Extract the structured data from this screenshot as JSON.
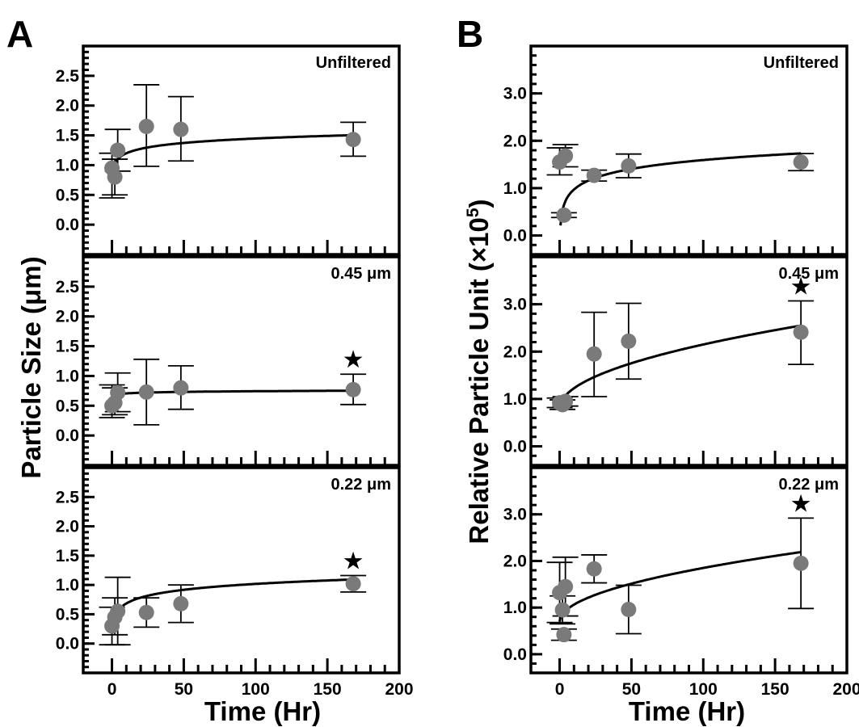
{
  "figure": {
    "panel_letters": [
      "A",
      "B"
    ],
    "x_axis_title": "Time (Hr)",
    "y_axis_titles": {
      "A": "Particle Size (μm)",
      "B_main": "Relative Particle Unit (×10",
      "B_sup": "5",
      "B_close": ")"
    }
  },
  "chart_data": [
    {
      "type": "scatter",
      "column": "A",
      "panel": "Unfiltered",
      "xlabel": "Time (Hr)",
      "ylabel": "Particle Size (μm)",
      "xlim": [
        -20,
        200
      ],
      "ylim": [
        -0.5,
        3.0
      ],
      "x_ticks": [
        "0",
        "50",
        "100",
        "150",
        "200"
      ],
      "y_ticks": [
        "0.0",
        "0.5",
        "1.0",
        "1.5",
        "2.0",
        "2.5"
      ],
      "points": [
        {
          "x": 0,
          "y": 0.95,
          "lo": 0.45,
          "hi": 1.2
        },
        {
          "x": 2,
          "y": 0.8,
          "lo": 0.5,
          "hi": 1.1
        },
        {
          "x": 4,
          "y": 1.25,
          "lo": 0.9,
          "hi": 1.6
        },
        {
          "x": 24,
          "y": 1.65,
          "lo": 0.98,
          "hi": 2.35
        },
        {
          "x": 48,
          "y": 1.6,
          "lo": 1.07,
          "hi": 2.15
        },
        {
          "x": 168,
          "y": 1.43,
          "lo": 1.15,
          "hi": 1.72
        }
      ],
      "fit": {
        "model": "log",
        "a": 0.95,
        "b": 0.108,
        "x_start": 0.5
      },
      "significant": false
    },
    {
      "type": "scatter",
      "column": "A",
      "panel": "0.45 μm",
      "xlabel": "Time (Hr)",
      "ylabel": "Particle Size (μm)",
      "xlim": [
        -20,
        200
      ],
      "ylim": [
        -0.5,
        3.0
      ],
      "x_ticks": [
        "0",
        "50",
        "100",
        "150",
        "200"
      ],
      "y_ticks": [
        "0.0",
        "0.5",
        "1.0",
        "1.5",
        "2.0",
        "2.5"
      ],
      "points": [
        {
          "x": 0,
          "y": 0.5,
          "lo": 0.3,
          "hi": 0.85
        },
        {
          "x": 2,
          "y": 0.55,
          "lo": 0.35,
          "hi": 0.8
        },
        {
          "x": 4,
          "y": 0.72,
          "lo": 0.4,
          "hi": 1.05
        },
        {
          "x": 24,
          "y": 0.73,
          "lo": 0.18,
          "hi": 1.28
        },
        {
          "x": 48,
          "y": 0.8,
          "lo": 0.44,
          "hi": 1.17
        },
        {
          "x": 168,
          "y": 0.77,
          "lo": 0.52,
          "hi": 1.03
        }
      ],
      "fit": {
        "model": "log",
        "a": 0.67,
        "b": 0.016,
        "x_start": 0.3
      },
      "significant": true
    },
    {
      "type": "scatter",
      "column": "A",
      "panel": "0.22 μm",
      "xlabel": "Time (Hr)",
      "ylabel": "Particle Size (μm)",
      "xlim": [
        -20,
        200
      ],
      "ylim": [
        -0.5,
        3.0
      ],
      "x_ticks": [
        "0",
        "50",
        "100",
        "150",
        "200"
      ],
      "y_ticks": [
        "0.0",
        "0.5",
        "1.0",
        "1.5",
        "2.0",
        "2.5"
      ],
      "points": [
        {
          "x": 0,
          "y": 0.3,
          "lo": -0.02,
          "hi": 0.62
        },
        {
          "x": 2,
          "y": 0.45,
          "lo": 0.15,
          "hi": 0.78
        },
        {
          "x": 4,
          "y": 0.55,
          "lo": -0.02,
          "hi": 1.13
        },
        {
          "x": 24,
          "y": 0.53,
          "lo": 0.28,
          "hi": 0.78
        },
        {
          "x": 48,
          "y": 0.68,
          "lo": 0.36,
          "hi": 1.0
        },
        {
          "x": 168,
          "y": 1.02,
          "lo": 0.88,
          "hi": 1.16
        }
      ],
      "fit": {
        "model": "log",
        "a": 0.35,
        "b": 0.145,
        "x_start": 0.5
      },
      "significant": true
    },
    {
      "type": "scatter",
      "column": "B",
      "panel": "Unfiltered",
      "xlabel": "Time (Hr)",
      "ylabel": "Relative Particle Unit (×10^5)",
      "xlim": [
        -20,
        200
      ],
      "ylim": [
        -0.4,
        4.0
      ],
      "x_ticks": [
        "0",
        "50",
        "100",
        "150",
        "200"
      ],
      "y_ticks": [
        "0.0",
        "1.0",
        "2.0",
        "3.0"
      ],
      "points": [
        {
          "x": 0,
          "y": 1.55,
          "lo": 1.28,
          "hi": 1.85
        },
        {
          "x": 3,
          "y": 0.43,
          "lo": 0.38,
          "hi": 0.48
        },
        {
          "x": 4,
          "y": 1.68,
          "lo": 1.45,
          "hi": 1.92
        },
        {
          "x": 24,
          "y": 1.27,
          "lo": 1.15,
          "hi": 1.38
        },
        {
          "x": 48,
          "y": 1.47,
          "lo": 1.22,
          "hi": 1.72
        },
        {
          "x": 168,
          "y": 1.55,
          "lo": 1.37,
          "hi": 1.73
        }
      ],
      "fit": {
        "model": "log",
        "a": 0.35,
        "b": 0.27,
        "x_start": 0.6
      },
      "significant": false
    },
    {
      "type": "scatter",
      "column": "B",
      "panel": "0.45 μm",
      "xlabel": "Time (Hr)",
      "ylabel": "Relative Particle Unit (×10^5)",
      "xlim": [
        -20,
        200
      ],
      "ylim": [
        -0.4,
        4.0
      ],
      "x_ticks": [
        "0",
        "50",
        "100",
        "150",
        "200"
      ],
      "y_ticks": [
        "0.0",
        "1.0",
        "2.0",
        "3.0"
      ],
      "points": [
        {
          "x": 0,
          "y": 0.92,
          "lo": 0.82,
          "hi": 1.02
        },
        {
          "x": 2,
          "y": 0.88,
          "lo": 0.78,
          "hi": 0.98
        },
        {
          "x": 4,
          "y": 0.95,
          "lo": 0.85,
          "hi": 1.05
        },
        {
          "x": 24,
          "y": 1.95,
          "lo": 1.05,
          "hi": 2.83
        },
        {
          "x": 48,
          "y": 2.22,
          "lo": 1.42,
          "hi": 3.02
        },
        {
          "x": 168,
          "y": 2.41,
          "lo": 1.73,
          "hi": 3.07
        }
      ],
      "fit": {
        "model": "sqrt",
        "a": 0.8,
        "b": 0.135,
        "x_start": 0
      },
      "significant": true
    },
    {
      "type": "scatter",
      "column": "B",
      "panel": "0.22 μm",
      "xlabel": "Time (Hr)",
      "ylabel": "Relative Particle Unit (×10^5)",
      "xlim": [
        -20,
        200
      ],
      "ylim": [
        -0.4,
        4.0
      ],
      "x_ticks": [
        "0",
        "50",
        "100",
        "150",
        "200"
      ],
      "y_ticks": [
        "0.0",
        "1.0",
        "2.0",
        "3.0"
      ],
      "points": [
        {
          "x": 0,
          "y": 1.32,
          "lo": 0.68,
          "hi": 1.97
        },
        {
          "x": 2,
          "y": 0.95,
          "lo": 0.65,
          "hi": 1.25
        },
        {
          "x": 3,
          "y": 0.42,
          "lo": 0.3,
          "hi": 0.54
        },
        {
          "x": 4,
          "y": 1.45,
          "lo": 0.82,
          "hi": 2.08
        },
        {
          "x": 24,
          "y": 1.83,
          "lo": 1.53,
          "hi": 2.13
        },
        {
          "x": 48,
          "y": 0.96,
          "lo": 0.44,
          "hi": 1.48
        },
        {
          "x": 168,
          "y": 1.95,
          "lo": 0.98,
          "hi": 2.92
        }
      ],
      "fit": {
        "model": "sqrt",
        "a": 0.7,
        "b": 0.115,
        "x_start": 0
      },
      "significant": true
    }
  ]
}
